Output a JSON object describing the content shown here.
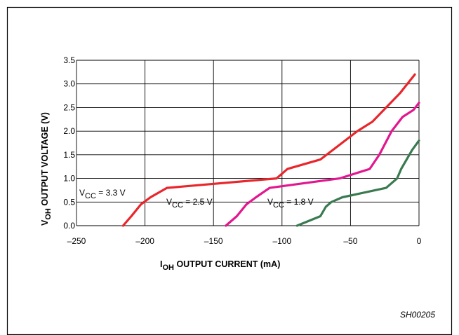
{
  "chart_data": {
    "type": "line",
    "xlabel": {
      "main": "I",
      "sub": "OH",
      "rest": " OUTPUT CURRENT (mA)"
    },
    "ylabel": {
      "main": "V",
      "sub": "OH",
      "rest": " OUTPUT VOLTAGE (V)"
    },
    "xlim": [
      -250,
      0
    ],
    "ylim": [
      0,
      3.5
    ],
    "x_ticks": [
      -250,
      -200,
      -150,
      -100,
      -50,
      0
    ],
    "x_tick_labels": [
      "–250",
      "–200",
      "–150",
      "–100",
      "–50",
      "0"
    ],
    "y_ticks": [
      0,
      0.5,
      1.0,
      1.5,
      2.0,
      2.5,
      3.0,
      3.5
    ],
    "y_tick_labels": [
      "0.0",
      "0.5",
      "1.0",
      "1.5",
      "2.0",
      "2.5",
      "3.0",
      "3.5"
    ],
    "grid": true,
    "series": [
      {
        "name": "VCC = 3.3 V",
        "color": "#e8262b",
        "points": [
          [
            -216,
            0
          ],
          [
            -210,
            0.2
          ],
          [
            -203,
            0.45
          ],
          [
            -196,
            0.6
          ],
          [
            -184,
            0.8
          ],
          [
            -104,
            1.0
          ],
          [
            -96,
            1.2
          ],
          [
            -72,
            1.4
          ],
          [
            -45,
            2.0
          ],
          [
            -34,
            2.2
          ],
          [
            -24,
            2.5
          ],
          [
            -14,
            2.8
          ],
          [
            -3,
            3.2
          ]
        ]
      },
      {
        "name": "VCC = 2.5 V",
        "color": "#e2178f",
        "points": [
          [
            -141,
            0
          ],
          [
            -133,
            0.2
          ],
          [
            -126,
            0.45
          ],
          [
            -119,
            0.6
          ],
          [
            -109,
            0.8
          ],
          [
            -58,
            1.0
          ],
          [
            -36,
            1.2
          ],
          [
            -29,
            1.5
          ],
          [
            -20,
            2.0
          ],
          [
            -12,
            2.3
          ],
          [
            -4,
            2.45
          ],
          [
            0,
            2.6
          ]
        ]
      },
      {
        "name": "VCC = 1.8 V",
        "color": "#3a7a50",
        "points": [
          [
            -89,
            0
          ],
          [
            -72,
            0.2
          ],
          [
            -68,
            0.4
          ],
          [
            -64,
            0.5
          ],
          [
            -56,
            0.6
          ],
          [
            -24,
            0.8
          ],
          [
            -16,
            1.0
          ],
          [
            -13,
            1.2
          ],
          [
            -9,
            1.4
          ],
          [
            -5,
            1.6
          ],
          [
            0,
            1.8
          ]
        ]
      }
    ],
    "annotations": [
      {
        "series": "VCC = 3.3 V",
        "main": "V",
        "sub": "CC",
        "rest": " = 3.3 V"
      },
      {
        "series": "VCC = 2.5 V",
        "main": "V",
        "sub": "CC",
        "rest": " = 2.5 V"
      },
      {
        "series": "VCC = 1.8 V",
        "main": "V",
        "sub": "CC",
        "rest": " = 1.8 V"
      }
    ]
  },
  "figure_id": "SH00205"
}
